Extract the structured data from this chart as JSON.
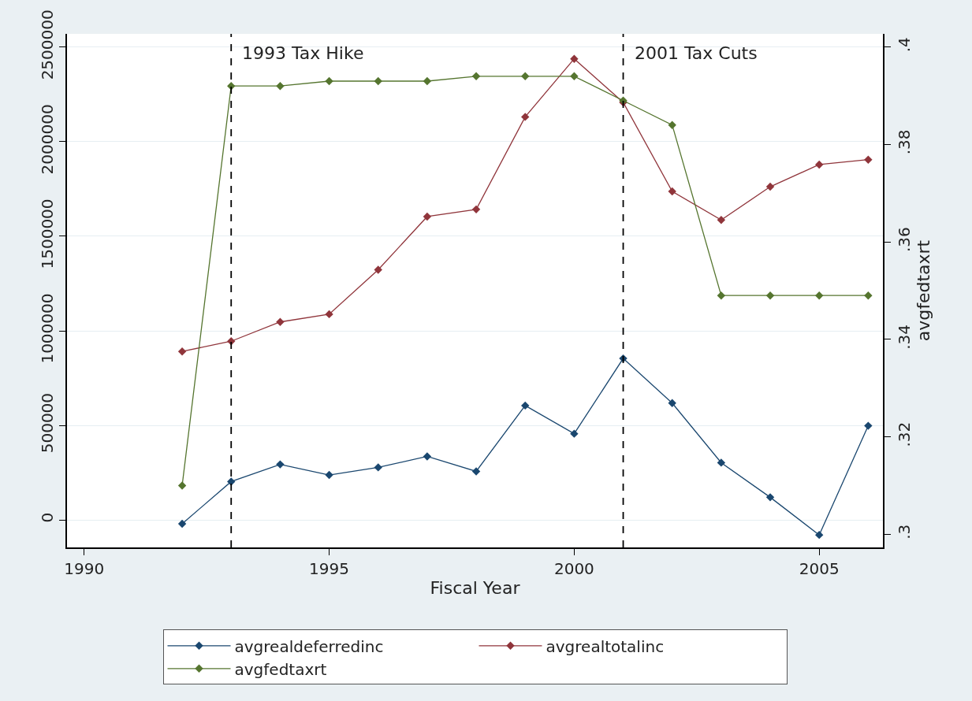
{
  "chart_data": {
    "type": "line",
    "xlabel": "Fiscal Year",
    "y2label": "avgfedtaxrt",
    "x": [
      1992,
      1993,
      1994,
      1995,
      1996,
      1997,
      1998,
      1999,
      2000,
      2001,
      2002,
      2003,
      2004,
      2005,
      2006
    ],
    "series": [
      {
        "name": "avgrealdeferredinc",
        "color": "#1a476f",
        "values": [
          -20000,
          203000,
          294000,
          238000,
          278000,
          336000,
          257000,
          605000,
          456000,
          854000,
          618000,
          303000,
          120000,
          -79000,
          498000
        ]
      },
      {
        "name": "avgrealtotalinc",
        "color": "#90353b",
        "values": [
          891000,
          945000,
          1047000,
          1088000,
          1323000,
          1604000,
          1642000,
          2131000,
          2438000,
          2208000,
          1737000,
          1586000,
          1762000,
          1879000,
          1905000
        ]
      },
      {
        "name": "avgfedtaxrt",
        "color": "#55752f",
        "axis": "y2",
        "values": [
          0.31,
          0.392,
          0.392,
          0.393,
          0.393,
          0.393,
          0.394,
          0.394,
          0.394,
          0.389,
          0.384,
          0.349,
          0.349,
          0.349,
          0.349
        ]
      }
    ],
    "xlim": [
      1989.65,
      2006.3
    ],
    "xticks": [
      1990,
      1995,
      2000,
      2005
    ],
    "ylim": [
      -145000,
      2570000
    ],
    "yticks": [
      0,
      500000,
      1000000,
      1500000,
      2000000,
      2500000
    ],
    "y2lim": [
      0.2973,
      0.4027
    ],
    "y2ticks": [
      {
        "value": 0.3,
        "label": ".3"
      },
      {
        "value": 0.32,
        "label": ".32"
      },
      {
        "value": 0.34,
        "label": ".34"
      },
      {
        "value": 0.36,
        "label": ".36"
      },
      {
        "value": 0.38,
        "label": ".38"
      },
      {
        "value": 0.4,
        "label": ".4"
      }
    ],
    "ref_lines": [
      {
        "axis": "x",
        "value": 1993,
        "label": "1993 Tax Hike",
        "color": "#000000",
        "line_style": "dashed"
      },
      {
        "axis": "x",
        "value": 2001,
        "label": "2001 Tax Cuts",
        "color": "#000000",
        "line_style": "dashed"
      }
    ],
    "grid": "y",
    "legend": "bottom",
    "marker": "diamond",
    "line_style": "solid"
  }
}
